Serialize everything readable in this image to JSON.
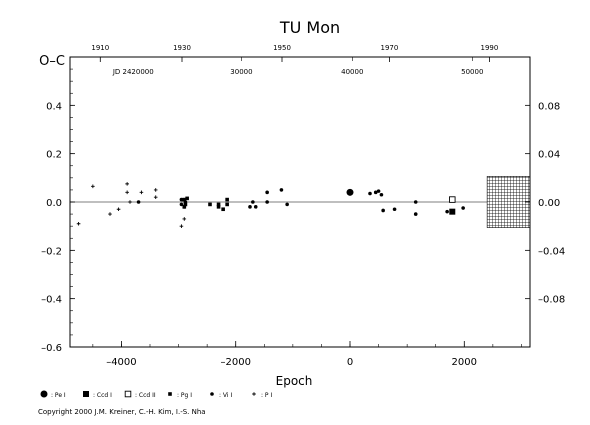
{
  "chart_data": {
    "type": "scatter",
    "title": "TU  Mon",
    "ylabel": "O–C",
    "xlabel": "Epoch",
    "xlim": [
      -4900,
      3150
    ],
    "ylim": [
      -0.6,
      0.6
    ],
    "left_ticks": [
      "–0.6",
      "–0.4",
      "–0.2",
      "0.0",
      "0.2",
      "0.4"
    ],
    "left_tick_values": [
      -0.6,
      -0.4,
      -0.2,
      0.0,
      0.2,
      0.4
    ],
    "right_ticks": [
      "–0.08",
      "–0.04",
      "0.00",
      "0.04",
      "0.08"
    ],
    "right_tick_values": [
      -0.08,
      -0.04,
      0.0,
      0.04,
      0.08
    ],
    "right_ylim": [
      -0.12,
      0.12
    ],
    "x_ticks": [
      "–4000",
      "–2000",
      "0",
      "2000"
    ],
    "x_tick_values": [
      -4000,
      -2000,
      0,
      2000
    ],
    "top_year_ticks": [
      "1910",
      "1930",
      "1950",
      "1970",
      "1990"
    ],
    "top_year_epochs": [
      -4370,
      -2940,
      -1190,
      690,
      2440
    ],
    "jd_label": "JD 2420000",
    "jd_label_epoch": -4150,
    "jd_ticks": [
      "30000",
      "40000",
      "50000"
    ],
    "jd_tick_epochs": [
      -1900,
      40,
      2140
    ],
    "hatch_region": {
      "x_from": 2400,
      "x_to": 3150,
      "y_from": -0.106,
      "y_to": 0.106
    },
    "legend": [
      {
        "label": ": Pe I",
        "marker": "big-circle"
      },
      {
        "label": ": Ccd I",
        "marker": "square"
      },
      {
        "label": ": Ccd II",
        "marker": "open-square"
      },
      {
        "label": ": Pg I",
        "marker": "small-square"
      },
      {
        "label": ": Vi I",
        "marker": "small-circle"
      },
      {
        "label": ": P I",
        "marker": "plus"
      }
    ],
    "series": [
      {
        "name": "Pe I",
        "marker": "big-circle",
        "x": [
          0
        ],
        "y": [
          0.04
        ]
      },
      {
        "name": "Ccd I",
        "marker": "square",
        "x": [
          1790
        ],
        "y": [
          -0.04
        ]
      },
      {
        "name": "Ccd II",
        "marker": "open-square",
        "x": [
          1790
        ],
        "y": [
          0.01
        ]
      },
      {
        "name": "Pg I",
        "marker": "small-square",
        "x": [
          -2900,
          -2880,
          -2900,
          -2450,
          -2300,
          -2300,
          -2220,
          -2150,
          -2150,
          -2850
        ],
        "y": [
          0.01,
          -0.01,
          -0.02,
          -0.01,
          -0.02,
          -0.01,
          -0.03,
          -0.01,
          0.01,
          0.015
        ]
      },
      {
        "name": "Vi I",
        "marker": "small-circle",
        "x": [
          -3700,
          -2950,
          -2880,
          -1750,
          -1700,
          -1650,
          -1450,
          -1450,
          -1200,
          -1100,
          350,
          450,
          500,
          550,
          580,
          780,
          1150,
          1150,
          1700,
          1980,
          -2950,
          -2900
        ],
        "y": [
          0.0,
          0.01,
          0.0,
          -0.02,
          0.0,
          -0.02,
          0.04,
          0.0,
          0.05,
          -0.01,
          0.035,
          0.04,
          0.045,
          0.03,
          -0.035,
          -0.03,
          -0.05,
          0.0,
          -0.04,
          -0.025,
          -0.01,
          -0.02
        ]
      },
      {
        "name": "P I",
        "marker": "plus",
        "x": [
          -4750,
          -4500,
          -4200,
          -4050,
          -3900,
          -3900,
          -3850,
          -3650,
          -3400,
          -3400,
          -2950,
          -2900
        ],
        "y": [
          -0.09,
          0.065,
          -0.05,
          -0.03,
          0.075,
          0.04,
          0.0,
          0.04,
          0.05,
          0.02,
          -0.1,
          -0.07
        ]
      }
    ]
  },
  "copyright": "Copyright 2000 J.M. Kreiner, C.-H. Kim, I.-S. Nha"
}
